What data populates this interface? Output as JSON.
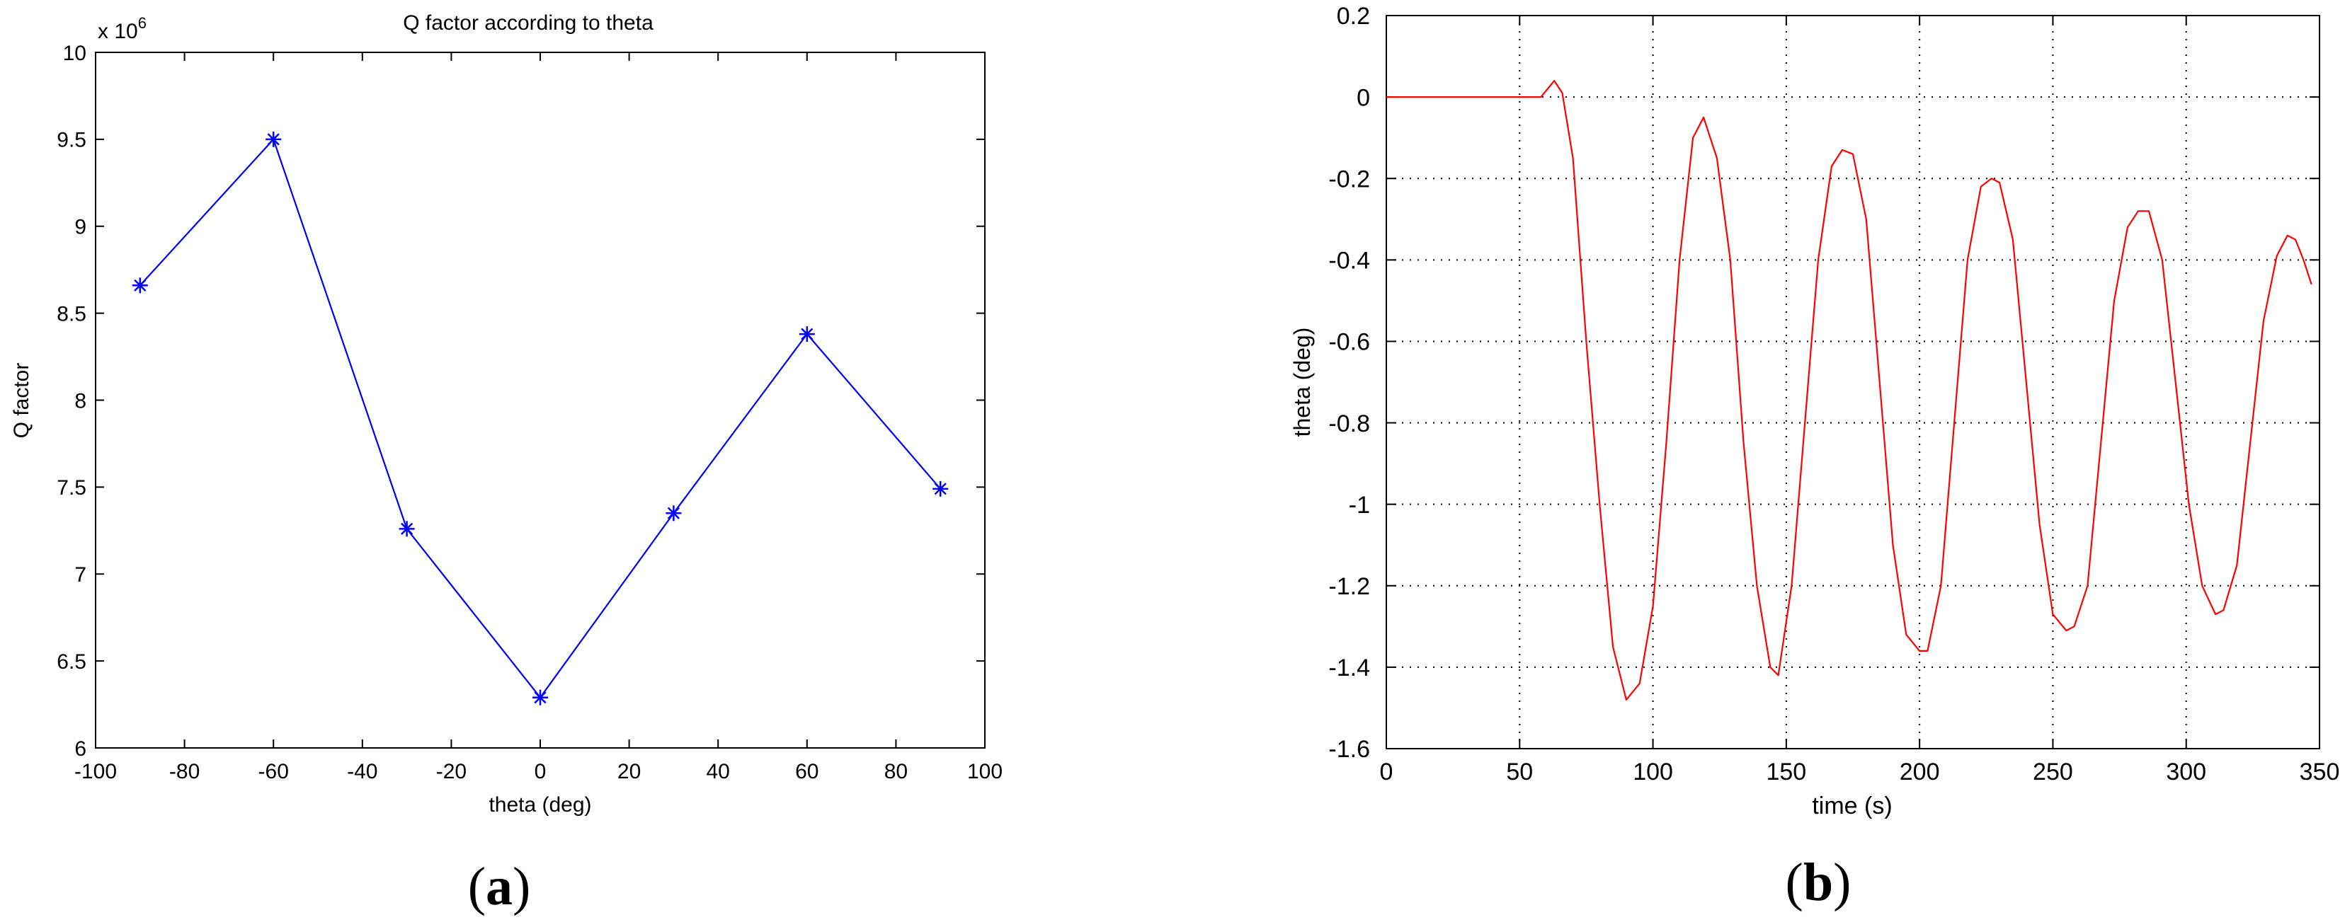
{
  "chart_data": [
    {
      "panel_label": "a",
      "type": "line",
      "title": "Q factor according to theta",
      "xlabel": "theta (deg)",
      "ylabel": "Q factor",
      "y_exponent_label": "x 10",
      "y_exponent_power": "6",
      "xlim": [
        -100,
        100
      ],
      "ylim": [
        6,
        10
      ],
      "xticks": [
        -100,
        -80,
        -60,
        -40,
        -20,
        0,
        20,
        40,
        60,
        80,
        100
      ],
      "yticks": [
        6,
        6.5,
        7,
        7.5,
        8,
        8.5,
        9,
        9.5,
        10
      ],
      "grid": false,
      "marker": "*",
      "line_color": "#0000ff",
      "series": [
        {
          "x": [
            -90,
            -60,
            -30,
            0,
            30,
            60,
            90
          ],
          "y": [
            8.66,
            9.5,
            7.26,
            6.29,
            7.35,
            8.38,
            7.49
          ]
        }
      ]
    },
    {
      "panel_label": "b",
      "type": "line",
      "xlabel": "time (s)",
      "ylabel": "theta (deg)",
      "xlim": [
        0,
        350
      ],
      "ylim": [
        -1.6,
        0.2
      ],
      "xticks": [
        0,
        50,
        100,
        150,
        200,
        250,
        300,
        350
      ],
      "yticks": [
        0.2,
        0,
        -0.2,
        -0.4,
        -0.6,
        -0.8,
        -1,
        -1.2,
        -1.4,
        -1.6
      ],
      "grid": true,
      "line_color": "#ff0000",
      "series": [
        {
          "x": [
            0,
            10,
            20,
            30,
            40,
            50,
            58,
            63,
            66,
            70,
            75,
            80,
            85,
            90,
            95,
            100,
            105,
            110,
            115,
            119,
            124,
            129,
            134,
            139,
            144,
            147,
            152,
            157,
            162,
            167,
            171,
            175,
            180,
            185,
            190,
            195,
            200,
            203,
            208,
            213,
            218,
            223,
            227,
            230,
            235,
            240,
            245,
            250,
            255,
            258,
            263,
            268,
            273,
            278,
            282,
            286,
            291,
            296,
            301,
            306,
            311,
            314,
            319,
            324,
            329,
            334,
            338,
            341,
            344,
            347
          ],
          "y": [
            0,
            0,
            0,
            0,
            0,
            0,
            0,
            0.04,
            0.01,
            -0.15,
            -0.6,
            -1.0,
            -1.35,
            -1.48,
            -1.44,
            -1.25,
            -0.85,
            -0.4,
            -0.1,
            -0.05,
            -0.15,
            -0.4,
            -0.85,
            -1.2,
            -1.4,
            -1.42,
            -1.2,
            -0.8,
            -0.4,
            -0.17,
            -0.13,
            -0.14,
            -0.3,
            -0.7,
            -1.1,
            -1.32,
            -1.36,
            -1.36,
            -1.2,
            -0.8,
            -0.4,
            -0.22,
            -0.2,
            -0.21,
            -0.35,
            -0.7,
            -1.05,
            -1.27,
            -1.31,
            -1.3,
            -1.2,
            -0.85,
            -0.5,
            -0.32,
            -0.28,
            -0.28,
            -0.4,
            -0.7,
            -1.0,
            -1.2,
            -1.27,
            -1.26,
            -1.15,
            -0.85,
            -0.55,
            -0.39,
            -0.34,
            -0.35,
            -0.4,
            -0.46
          ]
        }
      ]
    }
  ]
}
